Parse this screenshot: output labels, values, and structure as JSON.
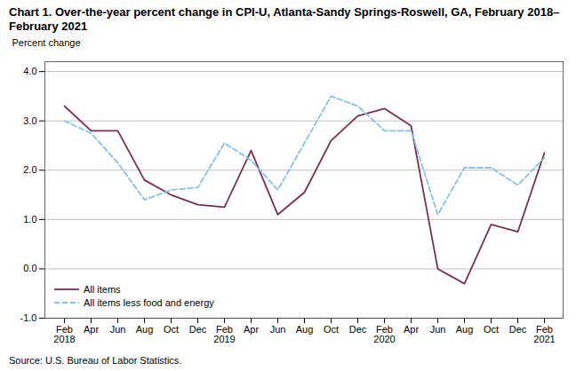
{
  "chart_data": {
    "type": "line",
    "title": "Chart 1. Over-the-year percent change in CPI-U, Atlanta-Sandy Springs-Roswell, GA, February 2018–February 2021",
    "ylabel": "Percent change",
    "source": "Source: U.S. Bureau of Labor Statistics.",
    "categories": [
      "Feb",
      "Apr",
      "Jun",
      "Aug",
      "Oct",
      "Dec",
      "Feb",
      "Apr",
      "Jun",
      "Aug",
      "Oct",
      "Dec",
      "Feb",
      "Apr",
      "Jun",
      "Aug",
      "Oct",
      "Dec",
      "Feb"
    ],
    "year_labels": [
      "2018",
      null,
      null,
      null,
      null,
      null,
      "2019",
      null,
      null,
      null,
      null,
      null,
      "2020",
      null,
      null,
      null,
      null,
      null,
      "2021"
    ],
    "series": [
      {
        "name": "All items",
        "color": "#7B2D52",
        "line_style": "solid",
        "values": [
          3.3,
          2.8,
          2.8,
          1.8,
          1.5,
          1.3,
          1.25,
          2.4,
          1.1,
          1.55,
          2.6,
          3.1,
          3.25,
          2.9,
          0.0,
          -0.3,
          0.9,
          0.75,
          2.35
        ]
      },
      {
        "name": "All items less food and energy",
        "color": "#85C1E9",
        "line_style": "dashed",
        "values": [
          3.0,
          2.75,
          2.15,
          1.4,
          1.6,
          1.65,
          2.55,
          2.2,
          1.6,
          2.55,
          3.5,
          3.3,
          2.8,
          2.8,
          1.1,
          2.05,
          2.05,
          1.7,
          2.25
        ]
      }
    ],
    "ylim": [
      -1.0,
      4.2
    ],
    "yticks": [
      {
        "value": -1.0,
        "label": "-1.0"
      },
      {
        "value": 0.0,
        "label": "0.0"
      },
      {
        "value": 1.0,
        "label": "1.0"
      },
      {
        "value": 2.0,
        "label": "2.0"
      },
      {
        "value": 3.0,
        "label": "3.0"
      },
      {
        "value": 4.0,
        "label": "4.0"
      }
    ],
    "grid": true,
    "legend": "lower left"
  }
}
